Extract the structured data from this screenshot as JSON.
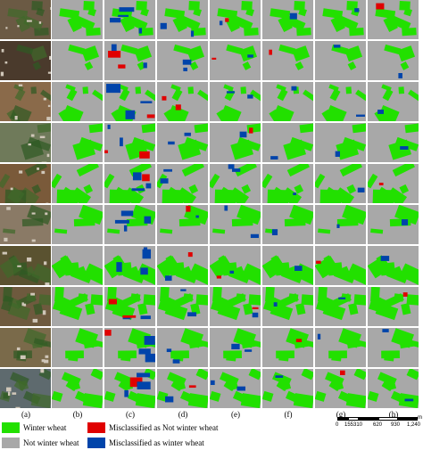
{
  "column_labels": [
    "(a)",
    "(b)",
    "(c)",
    "(d)",
    "(e)",
    "(f)",
    "(g)",
    "(h)"
  ],
  "legend": {
    "winter_wheat": "Winter wheat",
    "not_winter_wheat": "Not winter wheat",
    "misclassified_not": "Misclassified as Not winter wheat",
    "misclassified_as": "Misclassified as winter wheat"
  },
  "scale": {
    "ticks": [
      "0",
      "155",
      "310",
      "620",
      "930",
      "1,240"
    ],
    "unit": "m"
  },
  "colors": {
    "winter_wheat": "#22e000",
    "not_winter_wheat": "#a8a8a8",
    "misclassified_not": "#e00000",
    "misclassified_as": "#0044aa",
    "sat_bg": "#7a5a3a"
  }
}
